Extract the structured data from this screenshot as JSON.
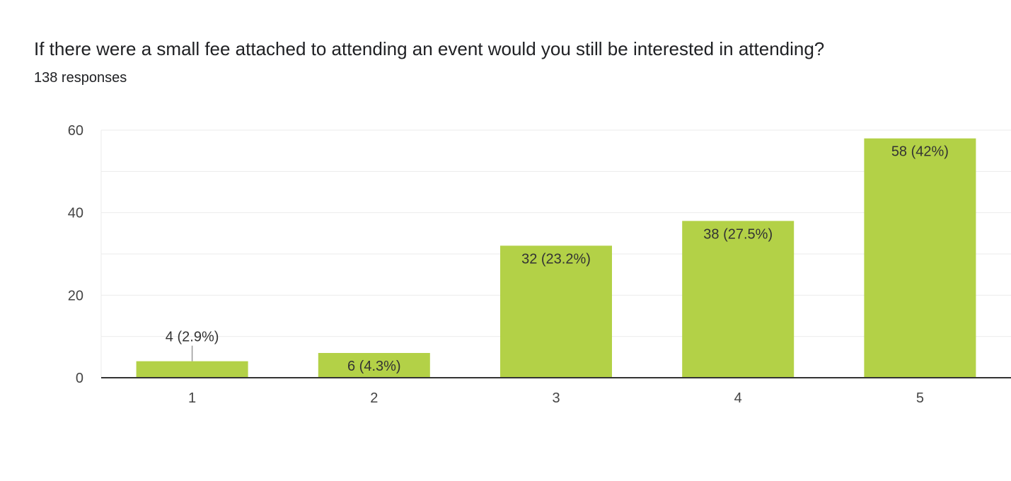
{
  "question": {
    "title": "If there were a small fee attached to attending an event would you still be interested in attending?",
    "responses": "138 responses"
  },
  "colors": {
    "bar": "#b3d147",
    "grid": "#ebebeb",
    "axis": "#333333",
    "text": "#202124",
    "leader": "#999999"
  },
  "chart_data": {
    "type": "bar",
    "categories": [
      "1",
      "2",
      "3",
      "4",
      "5"
    ],
    "values": [
      4,
      6,
      32,
      38,
      58
    ],
    "data_labels": [
      "4 (2.9%)",
      "6 (4.3%)",
      "32 (23.2%)",
      "38 (27.5%)",
      "58 (42%)"
    ],
    "yticks": [
      0,
      20,
      40,
      60
    ],
    "ylim": [
      0,
      60
    ],
    "minor_grid_step": 10,
    "grid": true,
    "legend": "none"
  }
}
